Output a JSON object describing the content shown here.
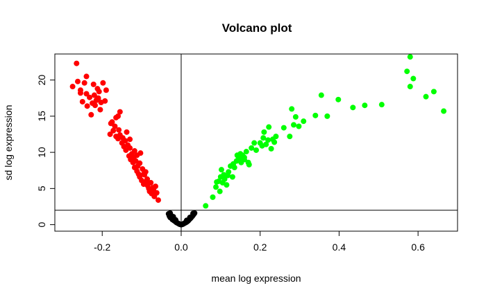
{
  "chart_data": {
    "type": "scatter",
    "title": "Volcano plot",
    "xlabel": "mean log expression",
    "ylabel": "sd log expression",
    "xlim": [
      -0.32,
      0.7
    ],
    "ylim": [
      -0.9,
      23.6
    ],
    "x_ticks": [
      -0.2,
      0.0,
      0.2,
      0.4,
      0.6
    ],
    "x_tick_labels": [
      "-0.2",
      "0.0",
      "0.2",
      "0.4",
      "0.6"
    ],
    "y_ticks": [
      0,
      5,
      10,
      15,
      20
    ],
    "y_tick_labels": [
      "0",
      "5",
      "10",
      "15",
      "20"
    ],
    "reference_lines": {
      "vertical_x": 0.0,
      "horizontal_y": 2.0
    },
    "grid": false,
    "legend": "none",
    "series": [
      {
        "color": "#ff0000",
        "points": [
          [
            -0.265,
            22.3
          ],
          [
            -0.275,
            19.1
          ],
          [
            -0.262,
            19.8
          ],
          [
            -0.255,
            18.2
          ],
          [
            -0.25,
            17.0
          ],
          [
            -0.245,
            19.6
          ],
          [
            -0.24,
            20.5
          ],
          [
            -0.238,
            16.4
          ],
          [
            -0.232,
            17.6
          ],
          [
            -0.228,
            15.2
          ],
          [
            -0.222,
            19.4
          ],
          [
            -0.218,
            16.5
          ],
          [
            -0.215,
            17.2
          ],
          [
            -0.212,
            18.8
          ],
          [
            -0.21,
            17.5
          ],
          [
            -0.208,
            18.4
          ],
          [
            -0.203,
            16.9
          ],
          [
            -0.198,
            19.6
          ],
          [
            -0.193,
            17.1
          ],
          [
            -0.19,
            18.6
          ],
          [
            -0.255,
            18.6
          ],
          [
            -0.24,
            18.1
          ],
          [
            -0.225,
            16.8
          ],
          [
            -0.205,
            15.9
          ],
          [
            -0.22,
            17.9
          ],
          [
            -0.155,
            15.6
          ],
          [
            -0.175,
            14.2
          ],
          [
            -0.168,
            13.6
          ],
          [
            -0.165,
            14.8
          ],
          [
            -0.16,
            15.0
          ],
          [
            -0.158,
            13.1
          ],
          [
            -0.155,
            12.4
          ],
          [
            -0.16,
            11.9
          ],
          [
            -0.15,
            11.3
          ],
          [
            -0.148,
            12.0
          ],
          [
            -0.145,
            10.8
          ],
          [
            -0.142,
            11.6
          ],
          [
            -0.14,
            10.3
          ],
          [
            -0.138,
            12.8
          ],
          [
            -0.135,
            11.0
          ],
          [
            -0.132,
            9.5
          ],
          [
            -0.13,
            10.6
          ],
          [
            -0.128,
            9.0
          ],
          [
            -0.125,
            9.8
          ],
          [
            -0.122,
            8.6
          ],
          [
            -0.12,
            9.3
          ],
          [
            -0.118,
            7.9
          ],
          [
            -0.115,
            8.8
          ],
          [
            -0.112,
            7.4
          ],
          [
            -0.11,
            8.1
          ],
          [
            -0.108,
            7.0
          ],
          [
            -0.105,
            6.6
          ],
          [
            -0.103,
            9.9
          ],
          [
            -0.1,
            6.1
          ],
          [
            -0.098,
            7.7
          ],
          [
            -0.095,
            5.6
          ],
          [
            -0.093,
            6.9
          ],
          [
            -0.09,
            7.3
          ],
          [
            -0.088,
            6.0
          ],
          [
            -0.085,
            5.4
          ],
          [
            -0.082,
            5.0
          ],
          [
            -0.08,
            4.6
          ],
          [
            -0.077,
            5.8
          ],
          [
            -0.075,
            4.3
          ],
          [
            -0.072,
            5.1
          ],
          [
            -0.07,
            4.8
          ],
          [
            -0.068,
            3.9
          ],
          [
            -0.065,
            5.3
          ],
          [
            -0.062,
            4.4
          ],
          [
            -0.058,
            3.4
          ],
          [
            -0.18,
            12.5
          ],
          [
            -0.172,
            13.0
          ],
          [
            -0.178,
            14.0
          ],
          [
            -0.165,
            12.2
          ],
          [
            -0.13,
            11.8
          ],
          [
            -0.118,
            10.2
          ],
          [
            -0.105,
            8.5
          ],
          [
            -0.095,
            7.0
          ],
          [
            -0.112,
            9.6
          ],
          [
            -0.086,
            6.3
          ]
        ]
      },
      {
        "color": "#000000",
        "points": [
          [
            -0.032,
            1.5
          ],
          [
            -0.03,
            1.2
          ],
          [
            -0.028,
            1.0
          ],
          [
            -0.026,
            1.3
          ],
          [
            -0.024,
            0.85
          ],
          [
            -0.022,
            0.7
          ],
          [
            -0.02,
            1.1
          ],
          [
            -0.018,
            0.55
          ],
          [
            -0.016,
            0.5
          ],
          [
            -0.014,
            0.4
          ],
          [
            -0.012,
            0.3
          ],
          [
            -0.01,
            0.25
          ],
          [
            -0.008,
            0.2
          ],
          [
            -0.006,
            0.12
          ],
          [
            -0.004,
            0.06
          ],
          [
            -0.002,
            0.03
          ],
          [
            0.0,
            0.0
          ],
          [
            0.002,
            0.03
          ],
          [
            0.004,
            0.06
          ],
          [
            0.006,
            0.12
          ],
          [
            0.008,
            0.2
          ],
          [
            0.01,
            0.25
          ],
          [
            0.012,
            0.3
          ],
          [
            0.014,
            0.38
          ],
          [
            0.016,
            0.46
          ],
          [
            0.018,
            0.55
          ],
          [
            0.02,
            0.7
          ],
          [
            0.022,
            0.8
          ],
          [
            0.024,
            0.9
          ],
          [
            0.026,
            1.05
          ],
          [
            0.028,
            1.15
          ],
          [
            0.03,
            1.3
          ],
          [
            0.032,
            1.45
          ],
          [
            0.034,
            1.6
          ],
          [
            -0.028,
            1.6
          ],
          [
            -0.02,
            0.9
          ],
          [
            -0.014,
            0.65
          ],
          [
            0.014,
            0.6
          ],
          [
            0.022,
            1.0
          ],
          [
            0.03,
            1.55
          ]
        ]
      },
      {
        "color": "#00ff00",
        "points": [
          [
            0.062,
            2.6
          ],
          [
            0.08,
            3.8
          ],
          [
            0.088,
            5.2
          ],
          [
            0.095,
            6.0
          ],
          [
            0.098,
            4.6
          ],
          [
            0.1,
            6.6
          ],
          [
            0.102,
            7.6
          ],
          [
            0.105,
            5.8
          ],
          [
            0.11,
            6.3
          ],
          [
            0.115,
            5.5
          ],
          [
            0.118,
            6.8
          ],
          [
            0.12,
            7.3
          ],
          [
            0.125,
            8.1
          ],
          [
            0.13,
            6.6
          ],
          [
            0.135,
            7.9
          ],
          [
            0.14,
            8.8
          ],
          [
            0.145,
            9.4
          ],
          [
            0.148,
            9.0
          ],
          [
            0.15,
            9.8
          ],
          [
            0.152,
            8.6
          ],
          [
            0.155,
            9.6
          ],
          [
            0.16,
            9.3
          ],
          [
            0.165,
            10.1
          ],
          [
            0.17,
            8.6
          ],
          [
            0.172,
            8.3
          ],
          [
            0.178,
            10.6
          ],
          [
            0.185,
            11.3
          ],
          [
            0.19,
            10.3
          ],
          [
            0.2,
            11.3
          ],
          [
            0.205,
            10.9
          ],
          [
            0.208,
            12.0
          ],
          [
            0.21,
            12.8
          ],
          [
            0.215,
            11.1
          ],
          [
            0.22,
            11.7
          ],
          [
            0.222,
            13.5
          ],
          [
            0.228,
            10.5
          ],
          [
            0.232,
            11.8
          ],
          [
            0.236,
            11.4
          ],
          [
            0.24,
            12.2
          ],
          [
            0.26,
            13.4
          ],
          [
            0.275,
            12.2
          ],
          [
            0.28,
            16.0
          ],
          [
            0.285,
            13.8
          ],
          [
            0.29,
            14.9
          ],
          [
            0.298,
            13.6
          ],
          [
            0.31,
            14.3
          ],
          [
            0.34,
            15.1
          ],
          [
            0.355,
            17.9
          ],
          [
            0.37,
            15.0
          ],
          [
            0.398,
            17.3
          ],
          [
            0.435,
            16.2
          ],
          [
            0.465,
            16.5
          ],
          [
            0.508,
            16.6
          ],
          [
            0.572,
            21.2
          ],
          [
            0.58,
            19.1
          ],
          [
            0.58,
            23.2
          ],
          [
            0.588,
            20.2
          ],
          [
            0.62,
            17.7
          ],
          [
            0.64,
            18.4
          ],
          [
            0.665,
            15.7
          ],
          [
            0.09,
            5.9
          ],
          [
            0.108,
            6.9
          ],
          [
            0.132,
            8.4
          ],
          [
            0.16,
            9.0
          ],
          [
            0.142,
            9.6
          ]
        ]
      }
    ]
  }
}
